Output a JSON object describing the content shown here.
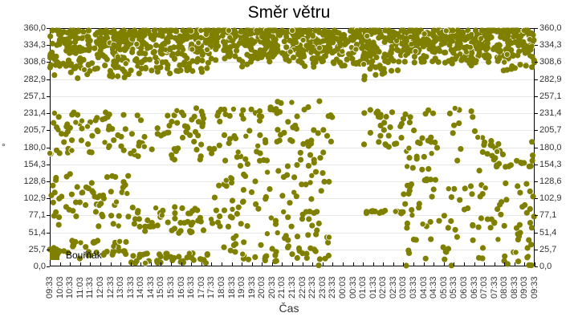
{
  "title": "Směr větru",
  "legend": {
    "label": "Bouřňák",
    "color": "#808000"
  },
  "axes": {
    "y_title": "°",
    "x_title": "Čas",
    "y_ticks": [
      "0,0",
      "25,7",
      "51,4",
      "77,1",
      "102,9",
      "128,6",
      "154,3",
      "180,0",
      "205,7",
      "231,4",
      "257,1",
      "282,9",
      "308,6",
      "334,3",
      "360,0"
    ],
    "x_ticks": [
      "09:33",
      "10:03",
      "10:33",
      "11:03",
      "11:33",
      "12:03",
      "12:33",
      "13:03",
      "13:33",
      "14:03",
      "14:33",
      "15:03",
      "15:33",
      "16:03",
      "16:33",
      "17:03",
      "17:33",
      "18:03",
      "18:33",
      "19:03",
      "19:33",
      "20:03",
      "20:33",
      "21:03",
      "21:33",
      "22:03",
      "22:33",
      "23:03",
      "23:33",
      "00:03",
      "00:33",
      "01:03",
      "01:33",
      "02:03",
      "02:33",
      "03:03",
      "03:33",
      "04:03",
      "04:33",
      "05:03",
      "05:33",
      "06:03",
      "06:33",
      "07:03",
      "07:33",
      "08:03",
      "08:33",
      "09:03",
      "09:33"
    ]
  },
  "chart_data": {
    "type": "scatter",
    "title": "Směr větru",
    "xlabel": "Čas",
    "ylabel": "°",
    "ylim": [
      0,
      360
    ],
    "grid": true,
    "legend_position": "bottom-left inside plot",
    "series": [
      {
        "name": "Bouřňák",
        "color": "#808000",
        "description": "Wind direction samples over 24h (09:33 to 09:33). Dense cluster 290-360° throughout; secondary clusters near 180° and scattered lower values. Gap mostly at 23:33-01:03 below 280° and 01:33-03:03 below 180°.",
        "density_profile": [
          {
            "from": "09:33",
            "to": "13:33",
            "main_band": [
              280,
              360
            ],
            "secondary": [
              [
                170,
                240
              ],
              [
                60,
                140
              ],
              [
                10,
                40
              ]
            ]
          },
          {
            "from": "13:33",
            "to": "17:33",
            "main_band": [
              290,
              360
            ],
            "secondary": [
              [
                160,
                240
              ],
              [
                50,
                90
              ],
              [
                5,
                20
              ]
            ]
          },
          {
            "from": "17:33",
            "to": "20:03",
            "main_band": [
              300,
              360
            ],
            "secondary": [
              [
                150,
                240
              ],
              [
                10,
                140
              ]
            ]
          },
          {
            "from": "20:03",
            "to": "23:33",
            "main_band": [
              300,
              360
            ],
            "secondary": [
              [
                120,
                250
              ],
              [
                0,
                120
              ]
            ]
          },
          {
            "from": "23:33",
            "to": "01:03",
            "main_band": [
              300,
              360
            ],
            "secondary": []
          },
          {
            "from": "01:03",
            "to": "03:03",
            "main_band": [
              280,
              360
            ],
            "secondary": [
              [
                180,
                240
              ],
              [
                80,
                85
              ]
            ]
          },
          {
            "from": "03:03",
            "to": "07:03",
            "main_band": [
              300,
              360
            ],
            "secondary": [
              [
                0,
                240
              ]
            ]
          },
          {
            "from": "07:03",
            "to": "09:33",
            "main_band": [
              290,
              360
            ],
            "secondary": [
              [
                150,
                190
              ],
              [
                0,
                130
              ]
            ]
          }
        ]
      }
    ]
  }
}
